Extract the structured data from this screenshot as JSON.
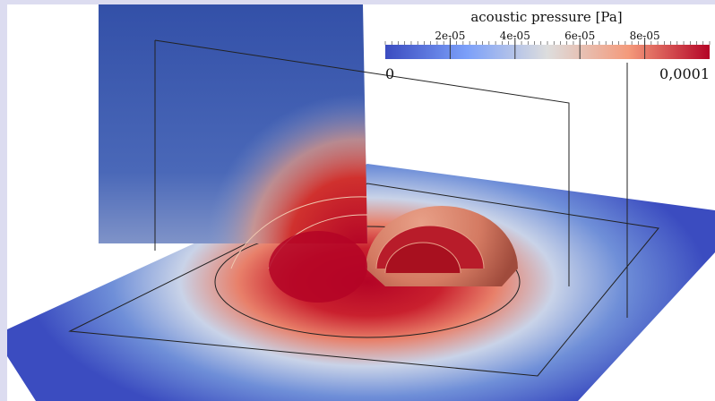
{
  "colorbar": {
    "title": "acoustic pressure [Pa]",
    "min": {
      "value": 0,
      "label": "0"
    },
    "max": {
      "value": 0.0001,
      "label": "0,0001"
    },
    "ticks": [
      {
        "value": 2e-05,
        "label": "2e-05"
      },
      {
        "value": 4e-05,
        "label": "4e-05"
      },
      {
        "value": 6e-05,
        "label": "6e-05"
      },
      {
        "value": 8e-05,
        "label": "8e-05"
      }
    ]
  }
}
